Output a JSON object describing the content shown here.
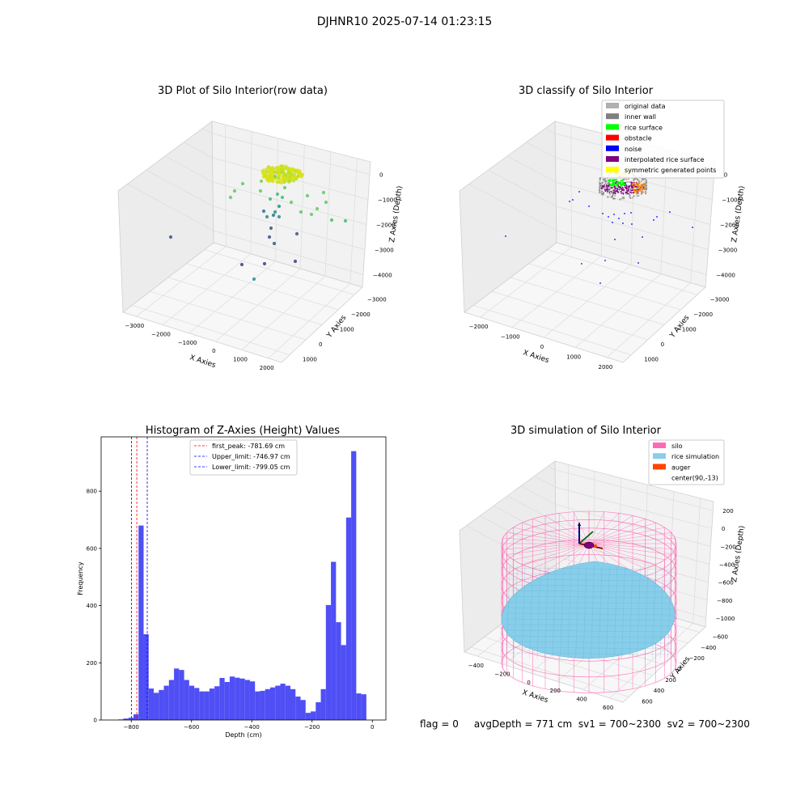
{
  "figure": {
    "suptitle": "DJHNR10 2025-07-14 01:23:15",
    "footer": "flag = 0     avgDepth = 771 cm  sv1 = 700~2300  sv2 = 700~2300"
  },
  "colors": {
    "hist_bar": "#4f4ff5",
    "first_peak": "#ff0000",
    "limits": "#0000ff",
    "silo": "#ff69b4",
    "rice": "#87ceeb",
    "auger": "#ff4500"
  },
  "chart_data": [
    {
      "type": "scatter",
      "title": "3D Plot of Silo Interior(row data)",
      "xlabel": "X Axies",
      "ylabel": "Y Axies",
      "zlabel": "Z Axies (Depth)",
      "x_ticks": [
        "−3000",
        "−2000",
        "−1000",
        "0",
        "1000",
        "2000"
      ],
      "y_ticks": [
        "−3000",
        "−2000",
        "−1000",
        "0",
        "1000"
      ],
      "z_ticks": [
        "−4000",
        "−3000",
        "−2000",
        "−1000",
        "0"
      ]
    },
    {
      "type": "scatter",
      "title": "3D classify of Silo Interior",
      "xlabel": "X Axies",
      "ylabel": "Y Axies",
      "zlabel": "Z Axies (Depth)",
      "x_ticks": [
        "−2000",
        "−1000",
        "0",
        "1000",
        "2000"
      ],
      "y_ticks": [
        "−3000",
        "−2000",
        "−1000",
        "0",
        "1000"
      ],
      "z_ticks": [
        "−4000",
        "−3000",
        "−2000",
        "−1000",
        "0"
      ],
      "legend": [
        {
          "label": "original data",
          "color": "#b0b0b0"
        },
        {
          "label": "inner wall",
          "color": "#808080"
        },
        {
          "label": "rice surface",
          "color": "#00ff00"
        },
        {
          "label": "obstacle",
          "color": "#ff0000"
        },
        {
          "label": "noise",
          "color": "#0000ff"
        },
        {
          "label": "interpolated rice surface",
          "color": "#800080"
        },
        {
          "label": "symmetric generated points",
          "color": "#ffff00"
        }
      ]
    },
    {
      "type": "bar",
      "title": "Histogram of Z-Axies (Height) Values",
      "xlabel": "Depth (cm)",
      "ylabel": "Frequency",
      "xlim": [
        -900,
        45
      ],
      "ylim": [
        0,
        990
      ],
      "x_ticks": [
        -800,
        -600,
        -400,
        -200,
        0
      ],
      "x_tick_labels": [
        "−800",
        "−600",
        "−400",
        "−200",
        "0"
      ],
      "y_ticks": [
        0,
        200,
        400,
        600,
        800
      ],
      "y_tick_labels": [
        "0",
        "200",
        "400",
        "600",
        "800"
      ],
      "bin_start": -843,
      "bin_width": 16.8,
      "values": [
        2,
        5,
        8,
        20,
        680,
        300,
        110,
        95,
        105,
        120,
        140,
        180,
        175,
        140,
        120,
        112,
        100,
        100,
        110,
        118,
        147,
        133,
        152,
        148,
        145,
        140,
        135,
        100,
        102,
        108,
        114,
        120,
        127,
        120,
        108,
        82,
        70,
        25,
        30,
        62,
        108,
        402,
        553,
        342,
        262,
        708,
        940,
        93,
        90
      ],
      "lines": [
        {
          "label": "first_peak: -781.69 cm",
          "x": -781.69,
          "color": "#ff0000"
        },
        {
          "label": "Upper_limit: -746.97 cm",
          "x": -746.97,
          "color": "#0000ff"
        },
        {
          "label": "Lower_limit: -799.05 cm",
          "x": -799.05,
          "color": "#0000ff"
        }
      ]
    },
    {
      "type": "scatter",
      "title": "3D simulation of Silo Interior",
      "xlabel": "X Axies",
      "ylabel": "Y Axies",
      "zlabel": "Z Axies (Depth)",
      "x_ticks": [
        "−400",
        "−200",
        "0",
        "200",
        "400",
        "600"
      ],
      "y_ticks": [
        "−600",
        "−400",
        "−200",
        "0",
        "200",
        "400",
        "600"
      ],
      "z_ticks": [
        "−1000",
        "−800",
        "−600",
        "−400",
        "−200",
        "0",
        "200"
      ],
      "legend": [
        {
          "label": "silo",
          "color": "#ff69b4"
        },
        {
          "label": "rice simulation",
          "color": "#87ceeb"
        },
        {
          "label": "auger",
          "color": "#ff4500"
        },
        {
          "label": "center(90,-13)",
          "color": ""
        }
      ]
    }
  ]
}
